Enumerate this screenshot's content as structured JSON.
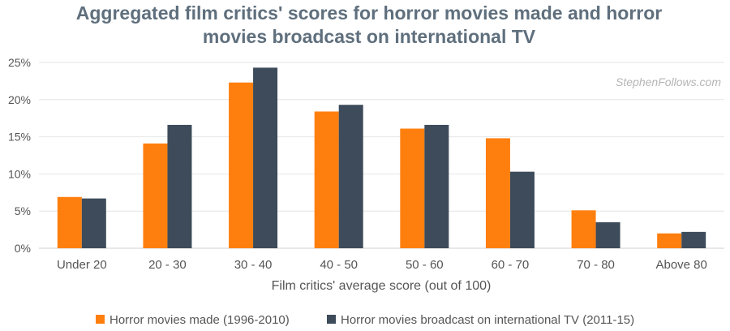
{
  "chart_data": {
    "type": "bar",
    "title_lines": [
      "Aggregated film critics' scores for horror movies made and horror",
      "movies broadcast on international TV"
    ],
    "xlabel": "Film critics' average score (out of 100)",
    "ylabel": "",
    "categories": [
      "Under 20",
      "20 - 30",
      "30 - 40",
      "40 - 50",
      "50 - 60",
      "60 - 70",
      "70 - 80",
      "Above 80"
    ],
    "series": [
      {
        "name": "Horror movies made (1996-2010)",
        "color": "#ff7f0e",
        "values": [
          6.9,
          14.1,
          22.3,
          18.4,
          16.1,
          14.8,
          5.1,
          2.0
        ]
      },
      {
        "name": "Horror movies broadcast on international TV (2011-15)",
        "color": "#3d4b5a",
        "values": [
          6.7,
          16.6,
          24.3,
          19.3,
          16.6,
          10.3,
          3.5,
          2.2
        ]
      }
    ],
    "ylim": [
      0,
      25
    ],
    "yticks": [
      "0%",
      "5%",
      "10%",
      "15%",
      "20%",
      "25%"
    ],
    "grid": true,
    "legend_position": "bottom",
    "watermark": "StephenFollows.com"
  }
}
